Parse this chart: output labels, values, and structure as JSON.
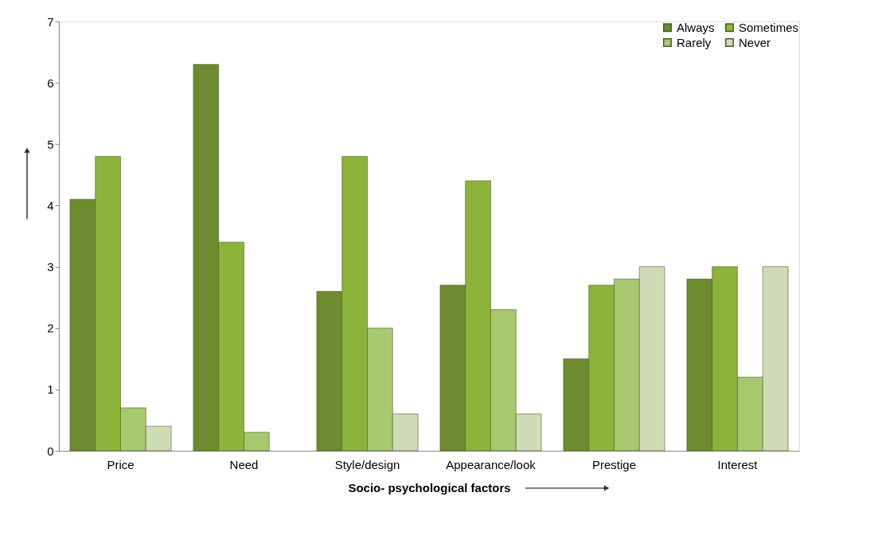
{
  "chart_data": {
    "type": "bar",
    "xlabel": "Socio- psychological factors",
    "categories": [
      "Price",
      "Need",
      "Style/design",
      "Appearance/look",
      "Prestige",
      "Interest"
    ],
    "series": [
      {
        "name": "Always",
        "color": "#6e8b30",
        "values": [
          4.1,
          6.3,
          2.6,
          2.7,
          1.5,
          2.8
        ]
      },
      {
        "name": "Sometimes",
        "color": "#8db43a",
        "values": [
          4.8,
          3.4,
          4.8,
          4.4,
          2.7,
          3.0
        ]
      },
      {
        "name": "Rarely",
        "color": "#a8c870",
        "values": [
          0.7,
          0.3,
          2.0,
          2.3,
          2.8,
          1.2
        ]
      },
      {
        "name": "Never",
        "color": "#d0dcb8",
        "values": [
          0.4,
          null,
          0.6,
          0.6,
          3.0,
          3.0
        ]
      }
    ],
    "ylim": [
      0,
      7
    ],
    "yticks": [
      0,
      1,
      2,
      3,
      4,
      5,
      6,
      7
    ],
    "grid": false,
    "legend": "top right"
  }
}
